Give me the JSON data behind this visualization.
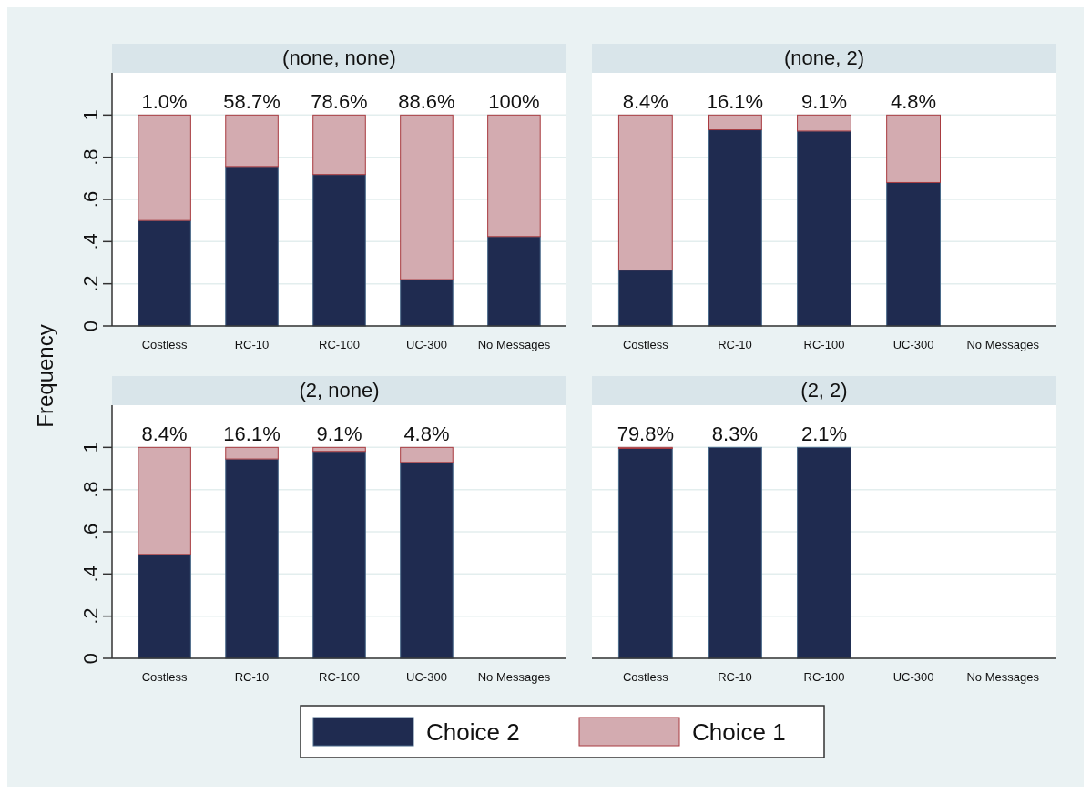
{
  "chart_data": [
    {
      "type": "bar",
      "title": "(none, none)",
      "ylabel": "Frequency",
      "categories": [
        "Costless",
        "RC-10",
        "RC-100",
        "UC-300",
        "No Messages"
      ],
      "stacked": true,
      "legend": "bottom",
      "grid": "y",
      "ylim": [
        0,
        1.2
      ],
      "yticks": [
        0,
        {
          "value": 0.2,
          "label": ".2"
        },
        {
          "value": 0.4,
          "label": ".4"
        },
        {
          "value": 0.6,
          "label": ".6"
        },
        {
          "value": 0.8,
          "label": ".8"
        },
        1
      ],
      "series": [
        {
          "name": "Choice 2",
          "color": "#1f2b50",
          "values": [
            0.5,
            0.756,
            0.718,
            0.22,
            0.424
          ]
        },
        {
          "name": "Choice 1",
          "color": "#d3abb0",
          "values": [
            0.5,
            0.244,
            0.282,
            0.78,
            0.576
          ]
        }
      ],
      "annotations": [
        {
          "text": "1.0%",
          "x": "Costless",
          "y": 1
        },
        {
          "text": "58.7%",
          "x": "RC-10",
          "y": 1
        },
        {
          "text": "78.6%",
          "x": "RC-100",
          "y": 1
        },
        {
          "text": "88.6%",
          "x": "UC-300",
          "y": 1
        },
        {
          "text": "100%",
          "x": "No Messages",
          "y": 1
        }
      ]
    },
    {
      "type": "bar",
      "title": "(none, 2)",
      "categories": [
        "Costless",
        "RC-10",
        "RC-100",
        "UC-300",
        "No Messages"
      ],
      "stacked": true,
      "grid": "y",
      "tick_labels": "x",
      "ylim": [
        0,
        1.2
      ],
      "yticks": [
        0,
        0.2,
        0.4,
        0.6,
        0.8,
        1
      ],
      "series": [
        {
          "color": "#1f2b50",
          "values": [
            0.265,
            0.93,
            0.924,
            0.68,
            null
          ]
        },
        {
          "color": "#d3abb0",
          "values": [
            0.735,
            0.07,
            0.076,
            0.32,
            null
          ]
        }
      ],
      "annotations": [
        {
          "text": "8.4%",
          "x": "Costless",
          "y": 1
        },
        {
          "text": "16.1%",
          "x": "RC-10",
          "y": 1
        },
        {
          "text": "9.1%",
          "x": "RC-100",
          "y": 1
        },
        {
          "text": "4.8%",
          "x": "UC-300",
          "y": 1
        }
      ]
    },
    {
      "type": "bar",
      "title": "(2, none)",
      "categories": [
        "Costless",
        "RC-10",
        "RC-100",
        "UC-300",
        "No Messages"
      ],
      "stacked": true,
      "grid": "y",
      "ylim": [
        0,
        1.2
      ],
      "yticks": [
        0,
        {
          "value": 0.2,
          "label": ".2"
        },
        {
          "value": 0.4,
          "label": ".4"
        },
        {
          "value": 0.6,
          "label": ".6"
        },
        {
          "value": 0.8,
          "label": ".8"
        },
        1
      ],
      "series": [
        {
          "color": "#1f2b50",
          "values": [
            0.493,
            0.945,
            0.981,
            0.929,
            null
          ]
        },
        {
          "color": "#d3abb0",
          "values": [
            0.507,
            0.055,
            0.019,
            0.071,
            null
          ]
        }
      ],
      "annotations": [
        {
          "text": "8.4%",
          "x": "Costless",
          "y": 1
        },
        {
          "text": "16.1%",
          "x": "RC-10",
          "y": 1
        },
        {
          "text": "9.1%",
          "x": "RC-100",
          "y": 1
        },
        {
          "text": "4.8%",
          "x": "UC-300",
          "y": 1
        }
      ]
    },
    {
      "type": "bar",
      "title": "(2, 2)",
      "categories": [
        "Costless",
        "RC-10",
        "RC-100",
        "UC-300",
        "No Messages"
      ],
      "stacked": true,
      "grid": "y",
      "tick_labels": "x",
      "ylim": [
        0,
        1.2
      ],
      "yticks": [
        0,
        0.2,
        0.4,
        0.6,
        0.8,
        1
      ],
      "series": [
        {
          "color": "#1f2b50",
          "values": [
            0.995,
            1,
            1,
            null,
            null
          ]
        },
        {
          "color": "#d3abb0",
          "values": [
            0.005,
            0,
            0,
            null,
            null
          ]
        }
      ],
      "annotations": [
        {
          "text": "79.8%",
          "x": "Costless",
          "y": 1
        },
        {
          "text": "8.3%",
          "x": "RC-10",
          "y": 1
        },
        {
          "text": "2.1%",
          "x": "RC-100",
          "y": 1
        }
      ]
    }
  ]
}
